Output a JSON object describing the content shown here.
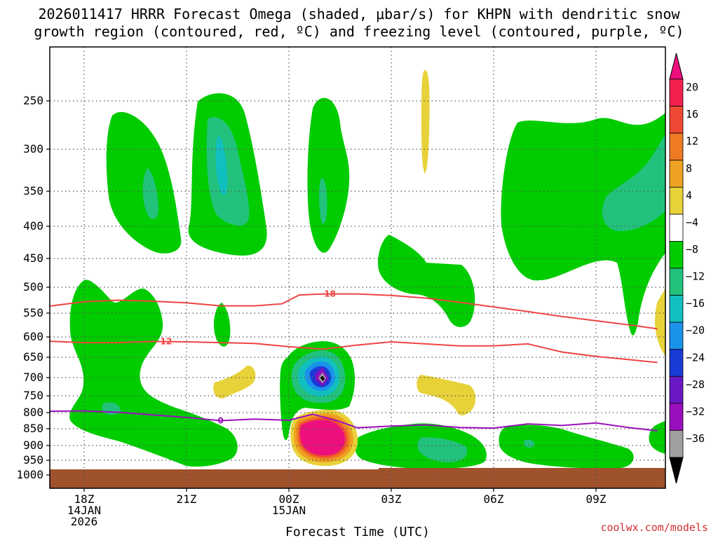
{
  "chart_data": {
    "type": "heatmap",
    "title_line1": "2026011417 HRRR Forecast Omega (shaded, μbar/s) for KHPN with dendritic snow",
    "title_line2": "growth region (contoured, red, ºC) and freezing level (contoured, purple, ºC)",
    "xlabel": "Forecast Time (UTC)",
    "credit": "coolwx.com/models",
    "x_ticks": [
      {
        "label": "18Z",
        "sub1": "14JAN",
        "sub2": "2026",
        "hour": 18
      },
      {
        "label": "21Z",
        "sub1": "",
        "sub2": "",
        "hour": 21
      },
      {
        "label": "00Z",
        "sub1": "15JAN",
        "sub2": "",
        "hour": 24
      },
      {
        "label": "03Z",
        "sub1": "",
        "sub2": "",
        "hour": 27
      },
      {
        "label": "06Z",
        "sub1": "",
        "sub2": "",
        "hour": 30
      },
      {
        "label": "09Z",
        "sub1": "",
        "sub2": "",
        "hour": 33
      }
    ],
    "y_ticks": [
      "250",
      "300",
      "350",
      "400",
      "450",
      "500",
      "550",
      "600",
      "650",
      "700",
      "750",
      "800",
      "850",
      "900",
      "950",
      "1000"
    ],
    "y_tick_values": [
      250,
      300,
      350,
      400,
      450,
      500,
      550,
      600,
      650,
      700,
      750,
      800,
      850,
      900,
      950,
      1000
    ],
    "colorbar_labels": [
      "20",
      "16",
      "12",
      "8",
      "4",
      "−4",
      "−8",
      "−12",
      "−16",
      "−20",
      "−24",
      "−28",
      "−32",
      "−36"
    ],
    "colorbar_colors": [
      "#f2204f",
      "#ee4a33",
      "#f07a24",
      "#eea221",
      "#e8d23a",
      "#ffffff",
      "#00cc00",
      "#22c27d",
      "#12bfbf",
      "#1a92ea",
      "#1a3ad6",
      "#6a18c4",
      "#9a0fbd",
      "#a0a0a0"
    ],
    "colors": {
      "green": "#00cc00",
      "teal": "#22c27d",
      "cyan": "#12bfbf",
      "blue": "#1a92ea",
      "darkblue": "#1a3ad6",
      "violet": "#6a18c4",
      "purple": "#9a0fbd",
      "gray": "#a0a0a0",
      "black": "#000000",
      "yellow": "#e8d23a",
      "gold": "#eea221",
      "orange": "#f07a24",
      "red": "#ee4a33",
      "magenta": "#ec0f7d",
      "ground": "#a0522d",
      "dgz_contour": "#ee4444",
      "freezing_contour": "#9a0fbd"
    },
    "contour_labels": {
      "dgz_upper": "−18",
      "dgz_lower": "−12",
      "freezing": "0"
    },
    "series": [
      {
        "name": "−18",
        "x": [
          16.8,
          18,
          19,
          20,
          21,
          22,
          23,
          23.8,
          24.3,
          25,
          26,
          27,
          28,
          29,
          30,
          31,
          32,
          33,
          34,
          34.8
        ],
        "y": [
          538,
          528,
          525,
          527,
          530,
          536,
          536,
          532,
          515,
          513,
          513,
          516,
          521,
          529,
          538,
          547,
          557,
          566,
          575,
          583
        ]
      },
      {
        "name": "−12",
        "x": [
          16.8,
          18,
          19,
          20,
          21,
          22,
          23,
          24,
          25,
          26,
          27,
          28,
          29,
          30,
          31,
          32,
          33,
          34,
          34.8
        ],
        "y": [
          610,
          614,
          614,
          611,
          612,
          614,
          616,
          624,
          630,
          620,
          612,
          617,
          622,
          622,
          617,
          637,
          648,
          656,
          663
        ]
      },
      {
        "name": "0",
        "x": [
          16.8,
          18,
          19,
          20,
          21,
          22,
          23,
          24,
          24.7,
          25.5,
          26,
          27,
          28,
          29,
          30,
          31,
          32,
          33,
          34,
          34.8
        ],
        "y": [
          796,
          795,
          799,
          807,
          815,
          825,
          820,
          824,
          805,
          828,
          847,
          842,
          838,
          846,
          848,
          835,
          840,
          832,
          847,
          856
        ]
      }
    ]
  }
}
